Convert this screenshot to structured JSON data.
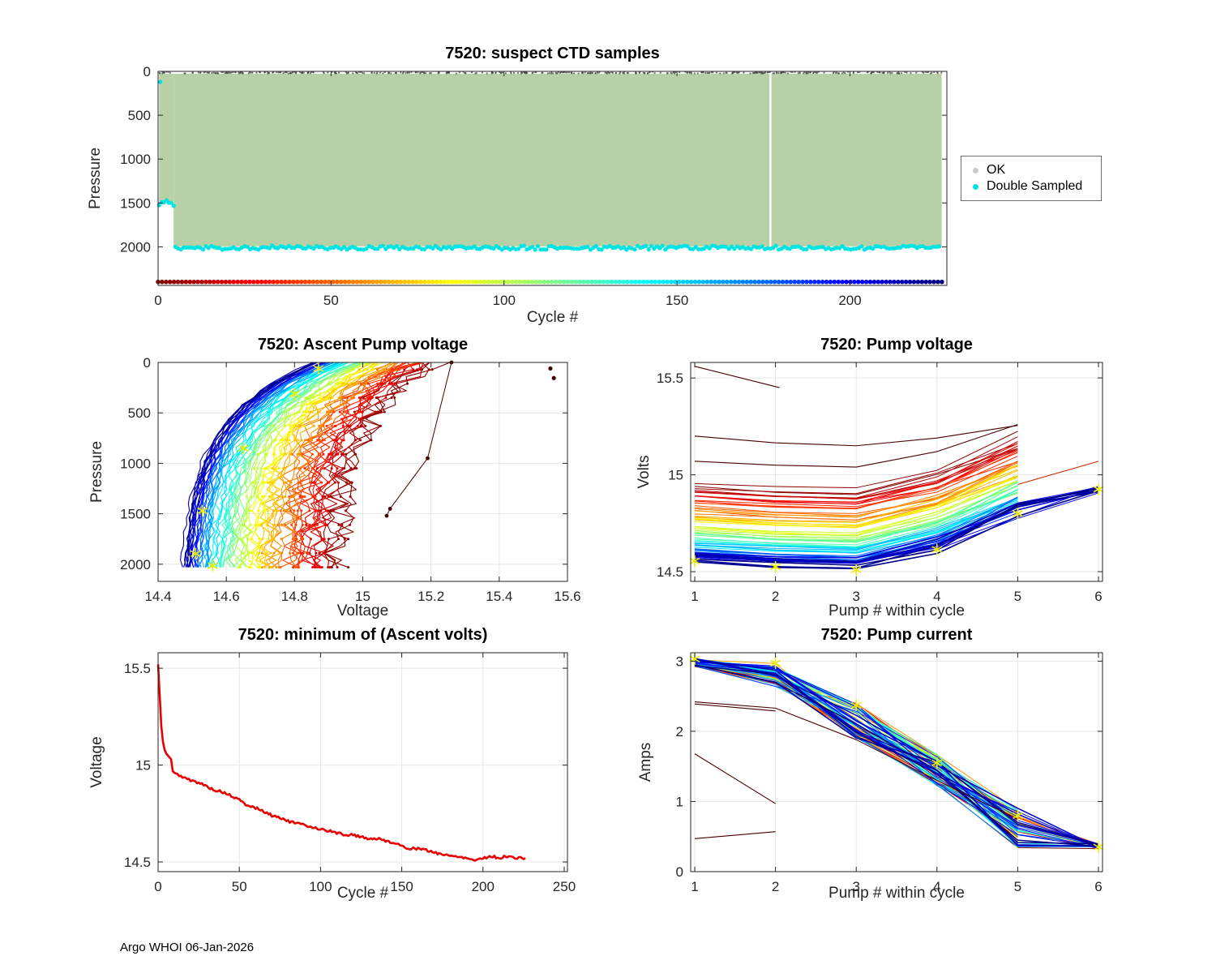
{
  "figure": {
    "background": "#ffffff"
  },
  "footer": {
    "credit": "Argo WHOI 06-Jan-2026"
  },
  "colors": {
    "axis": "#262626",
    "tick_label": "#262626",
    "grid": "#e7e7e7",
    "ok_fill": "#b7d0a5",
    "double_sampled": "#00e4e4",
    "min_voltage_line": "#e80000",
    "star": "#eded00",
    "outlier": "#4a0000"
  },
  "legend": {
    "items": [
      {
        "label": "OK",
        "color": "#c8c8c8"
      },
      {
        "label": "Double Sampled",
        "color": "#00e4e4"
      }
    ]
  },
  "chart_data": [
    {
      "id": "suspect-ctd",
      "type": "scatter",
      "title": "7520: suspect CTD samples",
      "xlabel": "Cycle #",
      "ylabel": "Pressure",
      "xlim": [
        0,
        228
      ],
      "ylim": [
        0,
        2440
      ],
      "y_reversed": true,
      "xticks": [
        0,
        50,
        100,
        150,
        200
      ],
      "xtick_labels": [
        "0",
        "50",
        "100",
        "150",
        "200"
      ],
      "yticks": [
        0,
        500,
        1000,
        1500,
        2000
      ],
      "ytick_labels": [
        "0",
        "500",
        "1000",
        "1500",
        "2000"
      ],
      "ok_block": {
        "cycle_start": 0.3,
        "cycle_end": 226.5,
        "pressure_top": 28,
        "pressure_bottom": 1995,
        "shallow_cycles_end": 4.5,
        "shallow_pressure_bottom": 1480,
        "gap_cycle": 177
      },
      "double_sampled": {
        "main_row_pressure": 2010,
        "main_cycles": [
          5,
          226.5
        ],
        "early_pressure": 1505,
        "early_cycles": [
          0.3,
          4.5
        ],
        "surface_point": [
          0.6,
          120
        ]
      },
      "cycle_color_row": {
        "pressure": 2400,
        "cycles": [
          0,
          227
        ],
        "colormap": "jet, early cycles dark red to late cycles dark blue"
      },
      "surface_speckle_pressure": [
        6,
        24
      ]
    },
    {
      "id": "ascent-pump-voltage",
      "type": "line",
      "title": "7520: Ascent Pump voltage",
      "xlabel": "Voltage",
      "ylabel": "Pressure",
      "xlim": [
        14.4,
        15.6
      ],
      "ylim": [
        0,
        2170
      ],
      "y_reversed": true,
      "xticks": [
        14.4,
        14.6,
        14.8,
        15.0,
        15.2,
        15.4,
        15.6
      ],
      "xtick_labels": [
        "14.4",
        "14.6",
        "14.8",
        "15",
        "15.2",
        "15.4",
        "15.6"
      ],
      "yticks": [
        0,
        500,
        1000,
        1500,
        2000
      ],
      "ytick_labels": [
        "0",
        "500",
        "1000",
        "1500",
        "2000"
      ],
      "profiles": {
        "cycles": [
          0,
          225
        ],
        "step": 3,
        "colormap": "jet, early cycles dark red to late cycles dark blue",
        "surface_voltage_first": 15.22,
        "surface_voltage_last": 14.86,
        "deep_voltage_first": 14.92,
        "deep_voltage_last": 14.47,
        "decay_pressure": 560,
        "max_pressure": 2030,
        "noise_first": 0.045,
        "noise_last": 0.006
      },
      "outlier_track": [
        [
          15.26,
          0
        ],
        [
          15.19,
          950
        ],
        [
          15.08,
          1450
        ],
        [
          15.07,
          1520
        ]
      ],
      "outlier_points": [
        [
          15.55,
          60
        ],
        [
          15.56,
          155
        ]
      ],
      "star_markers": [
        [
          14.87,
          60
        ],
        [
          14.8,
          310
        ],
        [
          14.65,
          850
        ],
        [
          14.53,
          1470
        ],
        [
          14.51,
          1895
        ],
        [
          14.56,
          2015
        ]
      ]
    },
    {
      "id": "pump-voltage",
      "type": "line",
      "title": "7520: Pump voltage",
      "xlabel": "Pump # within cycle",
      "ylabel": "Volts",
      "xlim": [
        0.95,
        6.05
      ],
      "ylim": [
        14.45,
        15.58
      ],
      "xticks": [
        1,
        2,
        3,
        4,
        5,
        6
      ],
      "xtick_labels": [
        "1",
        "2",
        "3",
        "4",
        "5",
        "6"
      ],
      "yticks": [
        14.5,
        15,
        15.5
      ],
      "ytick_labels": [
        "14.5",
        "15",
        "15.5"
      ],
      "series_spec": {
        "cycles": [
          0,
          225
        ],
        "step": 3,
        "colormap": "jet, early cycles dark red to late cycles dark blue",
        "pump1_first": 14.95,
        "pump1_last": 14.57,
        "dip_at_pump3": 0.03,
        "rise_to_pump5": 0.27,
        "pump6_voltage": 14.92,
        "pump6_last_cycles_only": true
      },
      "outlier_lines": [
        {
          "x": [
            1,
            2.05
          ],
          "y": [
            15.56,
            15.45
          ]
        },
        {
          "x": [
            1,
            2,
            3,
            4,
            5
          ],
          "y": [
            15.07,
            15.05,
            15.04,
            15.12,
            15.26
          ]
        },
        {
          "x": [
            1,
            2,
            3,
            4,
            5
          ],
          "y": [
            15.2,
            15.165,
            15.15,
            15.19,
            15.255
          ]
        }
      ],
      "pump6_red_line": {
        "x": [
          5,
          6
        ],
        "y": [
          14.95,
          15.07
        ]
      },
      "star_markers": [
        [
          1,
          14.555
        ],
        [
          2,
          14.525
        ],
        [
          3,
          14.51
        ],
        [
          4,
          14.615
        ],
        [
          5,
          14.8
        ],
        [
          6,
          14.925
        ]
      ]
    },
    {
      "id": "min-ascent-volts",
      "type": "line",
      "title": "7520: minimum of (Ascent volts)",
      "xlabel": "Cycle #",
      "ylabel": "Voltage",
      "xlim": [
        0,
        252
      ],
      "ylim": [
        14.45,
        15.58
      ],
      "xticks": [
        0,
        50,
        100,
        150,
        200,
        250
      ],
      "xtick_labels": [
        "0",
        "50",
        "100",
        "150",
        "200",
        "250"
      ],
      "yticks": [
        14.5,
        15,
        15.5
      ],
      "ytick_labels": [
        "14.5",
        "15",
        "15.5"
      ],
      "line_color": "#e80000",
      "points": [
        [
          0,
          15.52
        ],
        [
          1,
          15.36
        ],
        [
          2,
          15.2
        ],
        [
          3,
          15.12
        ],
        [
          4,
          15.08
        ],
        [
          5,
          15.06
        ],
        [
          6,
          15.05
        ],
        [
          8,
          15.03
        ],
        [
          9,
          14.97
        ],
        [
          10,
          14.96
        ],
        [
          12,
          14.95
        ],
        [
          15,
          14.94
        ],
        [
          20,
          14.92
        ],
        [
          25,
          14.91
        ],
        [
          30,
          14.89
        ],
        [
          35,
          14.87
        ],
        [
          40,
          14.86
        ],
        [
          45,
          14.84
        ],
        [
          50,
          14.82
        ],
        [
          55,
          14.79
        ],
        [
          60,
          14.78
        ],
        [
          65,
          14.76
        ],
        [
          70,
          14.74
        ],
        [
          75,
          14.73
        ],
        [
          80,
          14.71
        ],
        [
          85,
          14.7
        ],
        [
          90,
          14.69
        ],
        [
          95,
          14.68
        ],
        [
          100,
          14.67
        ],
        [
          105,
          14.66
        ],
        [
          110,
          14.65
        ],
        [
          115,
          14.64
        ],
        [
          120,
          14.64
        ],
        [
          125,
          14.63
        ],
        [
          130,
          14.62
        ],
        [
          135,
          14.62
        ],
        [
          140,
          14.61
        ],
        [
          145,
          14.6
        ],
        [
          150,
          14.58
        ],
        [
          155,
          14.57
        ],
        [
          160,
          14.57
        ],
        [
          165,
          14.56
        ],
        [
          170,
          14.55
        ],
        [
          175,
          14.54
        ],
        [
          180,
          14.53
        ],
        [
          185,
          14.53
        ],
        [
          190,
          14.52
        ],
        [
          195,
          14.51
        ],
        [
          200,
          14.52
        ],
        [
          205,
          14.53
        ],
        [
          210,
          14.52
        ],
        [
          215,
          14.53
        ],
        [
          220,
          14.52
        ],
        [
          226,
          14.52
        ]
      ]
    },
    {
      "id": "pump-current",
      "type": "line",
      "title": "7520: Pump current",
      "xlabel": "Pump # within cycle",
      "ylabel": "Amps",
      "xlim": [
        0.95,
        6.05
      ],
      "ylim": [
        0,
        3.12
      ],
      "xticks": [
        1,
        2,
        3,
        4,
        5,
        6
      ],
      "xtick_labels": [
        "1",
        "2",
        "3",
        "4",
        "5",
        "6"
      ],
      "yticks": [
        0,
        1,
        2,
        3
      ],
      "ytick_labels": [
        "0",
        "1",
        "2",
        "3"
      ],
      "series_spec": {
        "cycles": [
          0,
          225
        ],
        "step": 3,
        "colormap": "jet, early cycles dark red to late cycles dark blue",
        "pump1": 2.98,
        "pump2": 2.82,
        "pump3": 2.15,
        "pump4": 1.45,
        "pump5": 0.62,
        "pump6": 0.36,
        "pump6_last_cycles_only": true
      },
      "outlier_lines": [
        {
          "x": [
            1,
            2,
            3,
            4,
            5
          ],
          "y": [
            2.42,
            2.33,
            1.88,
            1.3,
            0.75
          ]
        },
        {
          "x": [
            1,
            2
          ],
          "y": [
            2.39,
            2.29
          ]
        },
        {
          "x": [
            1,
            2
          ],
          "y": [
            1.68,
            0.97
          ]
        },
        {
          "x": [
            1,
            2
          ],
          "y": [
            0.47,
            0.57
          ]
        }
      ],
      "star_markers": [
        [
          1,
          3.03
        ],
        [
          2,
          2.97
        ],
        [
          3,
          2.37
        ],
        [
          4,
          1.55
        ],
        [
          5,
          0.8
        ],
        [
          6,
          0.35
        ]
      ]
    }
  ]
}
